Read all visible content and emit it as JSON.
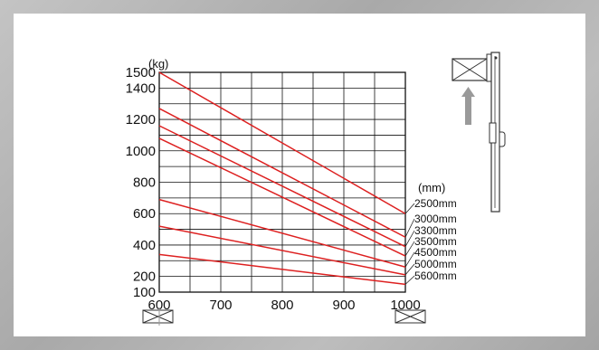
{
  "chart_data": {
    "type": "line",
    "title": "",
    "y_unit": "(kg)",
    "x_unit": "(mm)",
    "xlim": [
      600,
      1000
    ],
    "ylim": [
      100,
      1500
    ],
    "x_ticks": [
      "600",
      "700",
      "800",
      "900",
      "1000"
    ],
    "y_ticks": [
      "100",
      "200",
      "400",
      "600",
      "800",
      "1000",
      "1200",
      "1400",
      "1500"
    ],
    "x_tick_values": [
      600,
      700,
      800,
      900,
      1000
    ],
    "y_tick_values": [
      100,
      200,
      400,
      600,
      800,
      1000,
      1200,
      1400,
      1500
    ],
    "grid": true,
    "series": [
      {
        "name": "2500mm",
        "x": [
          600,
          1000
        ],
        "y": [
          1500,
          600
        ]
      },
      {
        "name": "3000mm",
        "x": [
          600,
          1000
        ],
        "y": [
          1270,
          450
        ]
      },
      {
        "name": "3300mm",
        "x": [
          600,
          1000
        ],
        "y": [
          1160,
          390
        ]
      },
      {
        "name": "3500mm",
        "x": [
          600,
          1000
        ],
        "y": [
          1080,
          330
        ]
      },
      {
        "name": "4500mm",
        "x": [
          600,
          1000
        ],
        "y": [
          690,
          260
        ]
      },
      {
        "name": "5000mm",
        "x": [
          600,
          1000
        ],
        "y": [
          520,
          210
        ]
      },
      {
        "name": "5600mm",
        "x": [
          600,
          1000
        ],
        "y": [
          340,
          150
        ]
      }
    ],
    "line_color": "#dd2020"
  }
}
